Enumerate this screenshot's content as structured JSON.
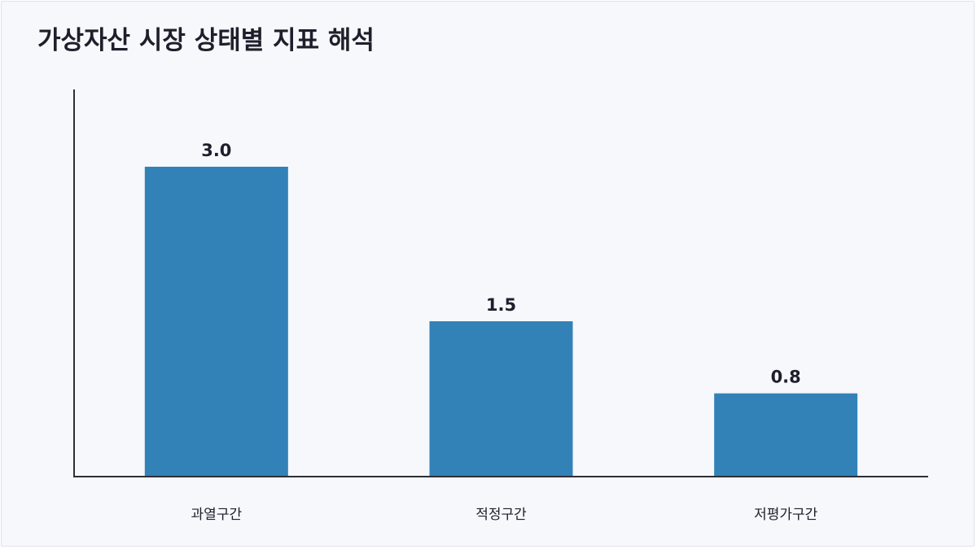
{
  "chart_data": {
    "type": "bar",
    "title": "가상자산 시장 상태별 지표 해석",
    "xlabel": "",
    "ylabel": "",
    "categories": [
      "과열구간",
      "적정구간",
      "저평가구간"
    ],
    "values": [
      3.0,
      1.5,
      0.8
    ],
    "value_labels": [
      "3.0",
      "1.5",
      "0.8"
    ],
    "ylim": [
      0,
      3.75
    ],
    "grid": false,
    "legend": "none",
    "bar_color": "#3282b8",
    "axis_color": "#2d2f3a"
  }
}
